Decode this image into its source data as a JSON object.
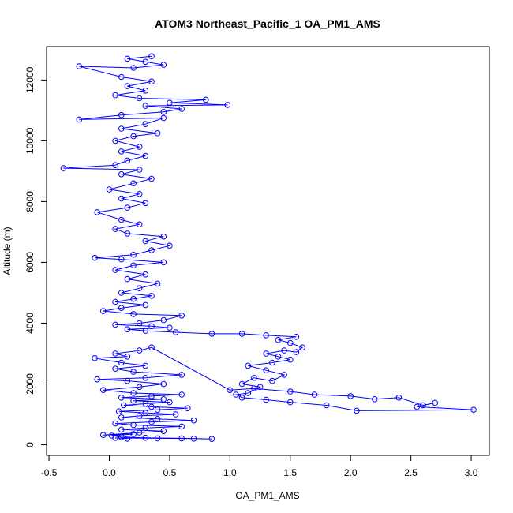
{
  "chart_data": {
    "type": "scatter",
    "title": "ATOM3 Northeast_Pacific_1 OA_PM1_AMS",
    "xlabel": "OA_PM1_AMS",
    "ylabel": "Altitude (m)",
    "xlim": [
      -0.52,
      3.15
    ],
    "ylim": [
      -350,
      13100
    ],
    "xticks": [
      -0.5,
      0.0,
      0.5,
      1.0,
      1.5,
      2.0,
      2.5,
      3.0
    ],
    "xtick_labels": [
      "-0.5",
      "0.0",
      "0.5",
      "1.0",
      "1.5",
      "2.0",
      "2.5",
      "3.0"
    ],
    "yticks": [
      0,
      2000,
      4000,
      6000,
      8000,
      10000,
      12000
    ],
    "ytick_labels": [
      "0",
      "2000",
      "4000",
      "6000",
      "8000",
      "10000",
      "12000"
    ],
    "grid": false,
    "legend": "none",
    "markers": "open circles",
    "connected": true,
    "color": "#0000ff",
    "series": [
      {
        "points": [
          [
            0.15,
            200
          ],
          [
            0.05,
            220
          ],
          [
            0.4,
            210
          ],
          [
            0.7,
            200
          ],
          [
            0.85,
            190
          ],
          [
            0.6,
            210
          ],
          [
            0.3,
            230
          ],
          [
            0.1,
            250
          ],
          [
            0.02,
            300
          ],
          [
            0.2,
            350
          ],
          [
            -0.05,
            320
          ],
          [
            0.25,
            400
          ],
          [
            0.45,
            450
          ],
          [
            0.1,
            500
          ],
          [
            0.3,
            550
          ],
          [
            0.6,
            600
          ],
          [
            0.2,
            650
          ],
          [
            0.05,
            700
          ],
          [
            0.35,
            750
          ],
          [
            0.7,
            800
          ],
          [
            0.4,
            850
          ],
          [
            0.1,
            900
          ],
          [
            0.25,
            950
          ],
          [
            0.55,
            1000
          ],
          [
            0.3,
            1050
          ],
          [
            0.08,
            1100
          ],
          [
            0.4,
            1150
          ],
          [
            0.65,
            1200
          ],
          [
            0.35,
            1250
          ],
          [
            0.12,
            1300
          ],
          [
            0.3,
            1350
          ],
          [
            0.5,
            1400
          ],
          [
            0.2,
            1450
          ],
          [
            0.45,
            1500
          ],
          [
            0.1,
            1550
          ],
          [
            0.35,
            1600
          ],
          [
            0.6,
            1650
          ],
          [
            0.2,
            1700
          ],
          [
            -0.05,
            1800
          ],
          [
            0.25,
            1900
          ],
          [
            0.45,
            2000
          ],
          [
            0.15,
            2100
          ],
          [
            -0.1,
            2150
          ],
          [
            0.3,
            2200
          ],
          [
            0.6,
            2300
          ],
          [
            0.2,
            2400
          ],
          [
            0.05,
            2500
          ],
          [
            0.3,
            2600
          ],
          [
            0.1,
            2700
          ],
          [
            -0.12,
            2850
          ],
          [
            0.15,
            2900
          ],
          [
            0.05,
            3000
          ],
          [
            0.25,
            3100
          ],
          [
            0.35,
            3200
          ],
          [
            1.0,
            1800
          ],
          [
            1.2,
            1850
          ],
          [
            1.5,
            1750
          ],
          [
            1.7,
            1650
          ],
          [
            2.0,
            1600
          ],
          [
            2.2,
            1500
          ],
          [
            2.4,
            1550
          ],
          [
            2.6,
            1300
          ],
          [
            2.7,
            1380
          ],
          [
            2.55,
            1250
          ],
          [
            3.02,
            1150
          ],
          [
            2.05,
            1120
          ],
          [
            1.8,
            1300
          ],
          [
            1.5,
            1400
          ],
          [
            1.3,
            1480
          ],
          [
            1.1,
            1550
          ],
          [
            1.05,
            1650
          ],
          [
            1.15,
            1700
          ],
          [
            1.25,
            1900
          ],
          [
            1.1,
            2000
          ],
          [
            1.2,
            2200
          ],
          [
            1.35,
            2100
          ],
          [
            1.45,
            2300
          ],
          [
            1.3,
            2450
          ],
          [
            1.15,
            2600
          ],
          [
            1.35,
            2700
          ],
          [
            1.5,
            2800
          ],
          [
            1.4,
            2900
          ],
          [
            1.3,
            3000
          ],
          [
            1.45,
            3100
          ],
          [
            1.55,
            3050
          ],
          [
            1.6,
            3200
          ],
          [
            1.5,
            3350
          ],
          [
            1.4,
            3450
          ],
          [
            1.55,
            3550
          ],
          [
            1.3,
            3600
          ],
          [
            1.1,
            3650
          ],
          [
            0.85,
            3650
          ],
          [
            0.55,
            3700
          ],
          [
            0.3,
            3750
          ],
          [
            0.15,
            3800
          ],
          [
            0.5,
            3850
          ],
          [
            0.35,
            3900
          ],
          [
            0.05,
            3950
          ],
          [
            0.25,
            4000
          ],
          [
            0.45,
            4100
          ],
          [
            0.6,
            4250
          ],
          [
            0.2,
            4300
          ],
          [
            -0.05,
            4400
          ],
          [
            0.1,
            4500
          ],
          [
            0.3,
            4600
          ],
          [
            0.05,
            4700
          ],
          [
            0.2,
            4800
          ],
          [
            0.35,
            4900
          ],
          [
            0.1,
            5000
          ],
          [
            0.25,
            5150
          ],
          [
            0.4,
            5300
          ],
          [
            0.15,
            5450
          ],
          [
            0.3,
            5600
          ],
          [
            0.05,
            5750
          ],
          [
            0.2,
            5900
          ],
          [
            0.45,
            6000
          ],
          [
            0.1,
            6100
          ],
          [
            -0.12,
            6150
          ],
          [
            0.2,
            6250
          ],
          [
            0.35,
            6400
          ],
          [
            0.5,
            6550
          ],
          [
            0.3,
            6700
          ],
          [
            0.45,
            6850
          ],
          [
            0.15,
            6950
          ],
          [
            0.05,
            7100
          ],
          [
            0.25,
            7250
          ],
          [
            0.1,
            7400
          ],
          [
            -0.1,
            7650
          ],
          [
            0.15,
            7800
          ],
          [
            0.3,
            7950
          ],
          [
            0.1,
            8100
          ],
          [
            0.25,
            8250
          ],
          [
            0.0,
            8400
          ],
          [
            0.2,
            8600
          ],
          [
            0.35,
            8750
          ],
          [
            0.1,
            8900
          ],
          [
            0.25,
            9050
          ],
          [
            -0.38,
            9100
          ],
          [
            0.05,
            9200
          ],
          [
            0.15,
            9350
          ],
          [
            0.3,
            9500
          ],
          [
            0.1,
            9650
          ],
          [
            0.25,
            9800
          ],
          [
            0.05,
            10000
          ],
          [
            0.2,
            10150
          ],
          [
            0.4,
            10250
          ],
          [
            0.1,
            10400
          ],
          [
            0.3,
            10550
          ],
          [
            0.45,
            10750
          ],
          [
            -0.25,
            10700
          ],
          [
            0.1,
            10850
          ],
          [
            0.45,
            10950
          ],
          [
            0.6,
            11050
          ],
          [
            0.3,
            11150
          ],
          [
            0.98,
            11180
          ],
          [
            0.5,
            11250
          ],
          [
            0.8,
            11350
          ],
          [
            0.25,
            11400
          ],
          [
            0.05,
            11500
          ],
          [
            0.3,
            11650
          ],
          [
            0.15,
            11800
          ],
          [
            0.35,
            11950
          ],
          [
            0.1,
            12100
          ],
          [
            -0.25,
            12450
          ],
          [
            0.2,
            12400
          ],
          [
            0.45,
            12500
          ],
          [
            0.3,
            12600
          ],
          [
            0.15,
            12700
          ],
          [
            0.35,
            12780
          ]
        ]
      }
    ]
  }
}
